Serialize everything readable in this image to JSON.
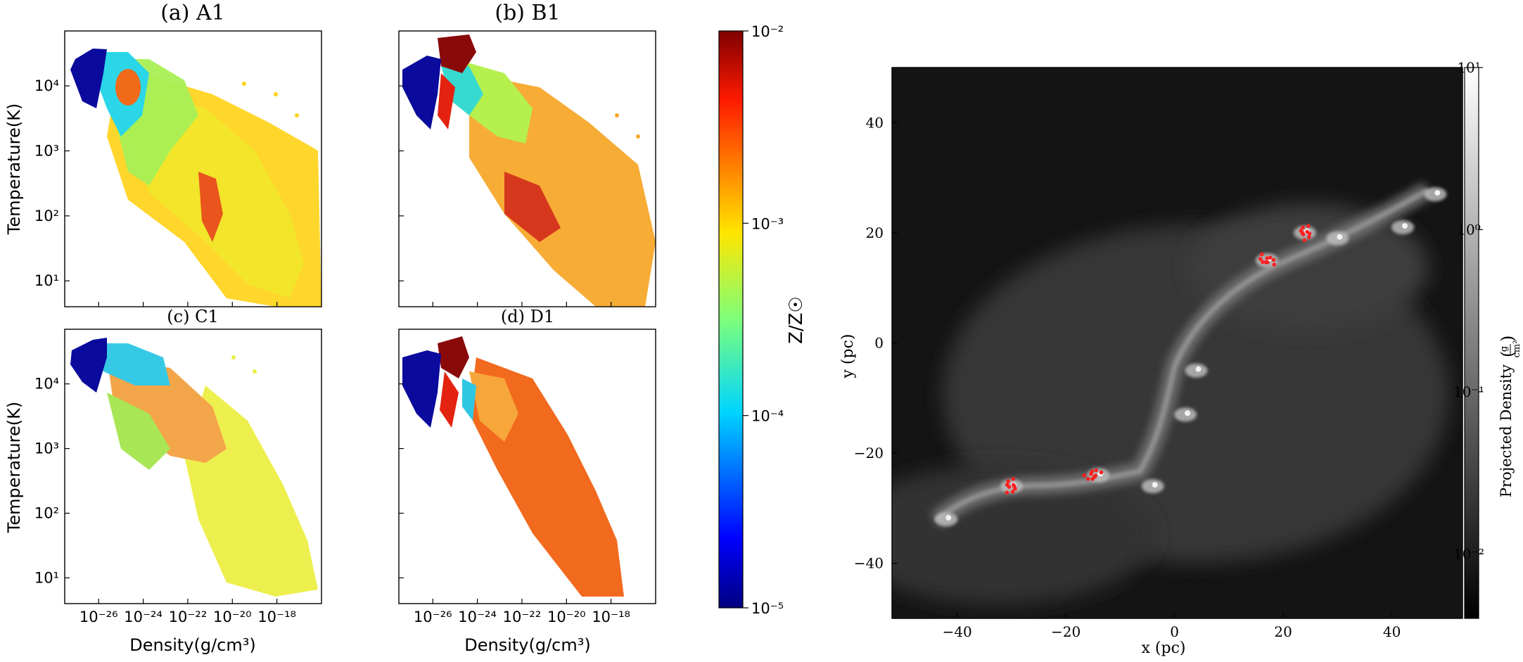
{
  "chart_data": [
    {
      "type": "heatmap",
      "panel": "phase-diagrams",
      "title": "(a) A1",
      "xlabel": "Density(g/cm³)",
      "ylabel": "Temperature(K)",
      "xscale": "log",
      "yscale": "log",
      "xlim": [
        3e-28,
        1e-16
      ],
      "ylim": [
        4,
        70000
      ],
      "x_ticks": [
        {
          "value": -26,
          "label": "10⁻²⁶"
        },
        {
          "value": -24,
          "label": "10⁻²⁴"
        },
        {
          "value": -22,
          "label": "10⁻²²"
        },
        {
          "value": -20,
          "label": "10⁻²⁰"
        },
        {
          "value": -18,
          "label": "10⁻¹⁸"
        }
      ],
      "y_ticks": [
        {
          "value": 1,
          "label": "10¹"
        },
        {
          "value": 2,
          "label": "10²"
        },
        {
          "value": 3,
          "label": "10³"
        },
        {
          "value": 4,
          "label": "10⁴"
        }
      ],
      "color_quantity": "Z/Z☉"
    },
    {
      "type": "heatmap",
      "panel": "phase-diagrams",
      "title": "(b) B1",
      "xlabel": "",
      "ylabel": "",
      "xscale": "log",
      "yscale": "log",
      "xlim": [
        3e-28,
        1e-16
      ],
      "ylim": [
        4,
        70000
      ],
      "color_quantity": "Z/Z☉"
    },
    {
      "type": "heatmap",
      "panel": "phase-diagrams",
      "title": "(c) C1",
      "xlabel": "Density(g/cm³)",
      "ylabel": "Temperature(K)",
      "xscale": "log",
      "yscale": "log",
      "xlim": [
        3e-28,
        1e-16
      ],
      "ylim": [
        4,
        70000
      ],
      "color_quantity": "Z/Z☉"
    },
    {
      "type": "heatmap",
      "panel": "phase-diagrams",
      "title": "(d) D1",
      "xlabel": "Density(g/cm³)",
      "ylabel": "",
      "xscale": "log",
      "yscale": "log",
      "xlim": [
        3e-28,
        1e-16
      ],
      "ylim": [
        4,
        70000
      ],
      "color_quantity": "Z/Z☉"
    },
    {
      "type": "heatmap",
      "panel": "metallicity-colorbar",
      "label": "Z/Z☉",
      "scale": "log",
      "range": [
        1e-05,
        0.01
      ],
      "ticks": [
        {
          "value": -2,
          "label": "10⁻²"
        },
        {
          "value": -3,
          "label": "10⁻³"
        },
        {
          "value": -4,
          "label": "10⁻⁴"
        },
        {
          "value": -5,
          "label": "10⁻⁵"
        }
      ],
      "colormap": "jet"
    },
    {
      "type": "heatmap",
      "panel": "projected-density-map",
      "xlabel": "x  (pc)",
      "ylabel": "y  (pc)",
      "xlim": [
        -52,
        53
      ],
      "ylim": [
        -50,
        50
      ],
      "x_ticks": [
        {
          "value": -40,
          "label": "−40"
        },
        {
          "value": -20,
          "label": "−20"
        },
        {
          "value": 0,
          "label": "0"
        },
        {
          "value": 20,
          "label": "20"
        },
        {
          "value": 40,
          "label": "40"
        }
      ],
      "y_ticks": [
        {
          "value": 40,
          "label": "40"
        },
        {
          "value": 20,
          "label": "20"
        },
        {
          "value": 0,
          "label": "0"
        },
        {
          "value": -20,
          "label": "−20"
        },
        {
          "value": -40,
          "label": "−40"
        }
      ],
      "colorbar_label": "Projected Density",
      "colorbar_unit_num": "g",
      "colorbar_unit_den": "cm²",
      "colorbar_scale": "log",
      "colorbar_range": [
        0.004,
        10
      ],
      "colorbar_ticks": [
        {
          "value": 1,
          "label": "10¹"
        },
        {
          "value": 0,
          "label": "10⁰"
        },
        {
          "value": -1,
          "label": "10⁻¹"
        },
        {
          "value": -2,
          "label": "10⁻²"
        }
      ],
      "filaments": [
        {
          "x": -42,
          "y": -32
        },
        {
          "x": -30,
          "y": -26
        },
        {
          "x": -14,
          "y": -24
        },
        {
          "x": -4,
          "y": -26
        },
        {
          "x": 2,
          "y": -13
        },
        {
          "x": 4,
          "y": -5
        },
        {
          "x": 17,
          "y": 15
        },
        {
          "x": 24,
          "y": 20
        },
        {
          "x": 30,
          "y": 19
        },
        {
          "x": 42,
          "y": 21
        },
        {
          "x": 48,
          "y": 27
        }
      ],
      "star_clusters": [
        {
          "x": -30,
          "y": -26
        },
        {
          "x": -15,
          "y": -24
        },
        {
          "x": 17,
          "y": 15
        },
        {
          "x": 24,
          "y": 20
        }
      ],
      "colors": {
        "star_marker": "#ff2020"
      }
    }
  ]
}
